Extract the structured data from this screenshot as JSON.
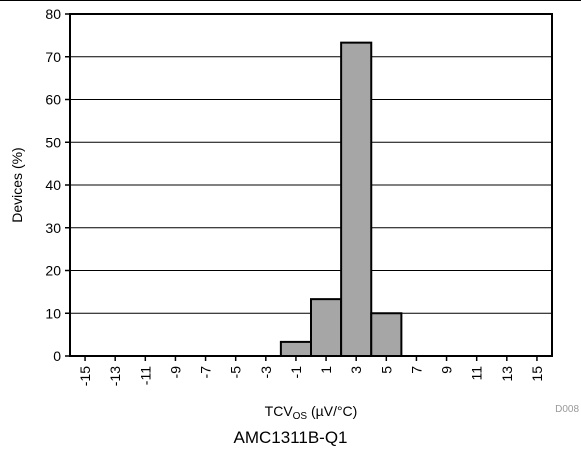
{
  "caption": "AMC1311B-Q1",
  "figure_id": "D008",
  "colors": {
    "bar_fill": "#a6a6a6",
    "bar_stroke": "#000000",
    "grid": "#000000",
    "figure_id": "#999999"
  },
  "chart_data": {
    "type": "bar",
    "xlabel_main": "TCV",
    "xlabel_sub": "OS",
    "xlabel_unit": " (µV/°C)",
    "ylabel": "Devices (%)",
    "ylim": [
      0,
      80
    ],
    "yticks": [
      "0",
      "10",
      "20",
      "30",
      "40",
      "50",
      "60",
      "70",
      "80"
    ],
    "xlim": [
      -16,
      16
    ],
    "xticks": [
      "-15",
      "-13",
      "-11",
      "-9",
      "-7",
      "-5",
      "-3",
      "-1",
      "1",
      "3",
      "5",
      "7",
      "9",
      "11",
      "13",
      "15"
    ],
    "grid": true,
    "bars": [
      {
        "from": -2,
        "to": 0,
        "value": 3.3
      },
      {
        "from": 0,
        "to": 2,
        "value": 13.3
      },
      {
        "from": 2,
        "to": 4,
        "value": 73.3
      },
      {
        "from": 4,
        "to": 6,
        "value": 10.0
      }
    ]
  }
}
